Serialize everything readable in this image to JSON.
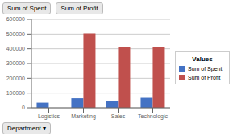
{
  "chart_data": {
    "type": "bar",
    "categories": [
      "Logistics",
      "Marketing",
      "Sales",
      "Technologic"
    ],
    "series": [
      {
        "name": "Sum of Spent",
        "color": "#4472C4",
        "values": [
          35000,
          65000,
          48000,
          68000
        ]
      },
      {
        "name": "Sum of Profit",
        "color": "#C0504D",
        "values": [
          0,
          505000,
          410000,
          410000
        ]
      }
    ],
    "ylim": [
      0,
      600000
    ],
    "yticks": [
      0,
      100000,
      200000,
      300000,
      400000,
      500000,
      600000
    ],
    "grid": true,
    "legend_title": "Values",
    "annotations": [
      "Sum of Spent",
      "Sum of Profit",
      "Department ▾"
    ]
  }
}
